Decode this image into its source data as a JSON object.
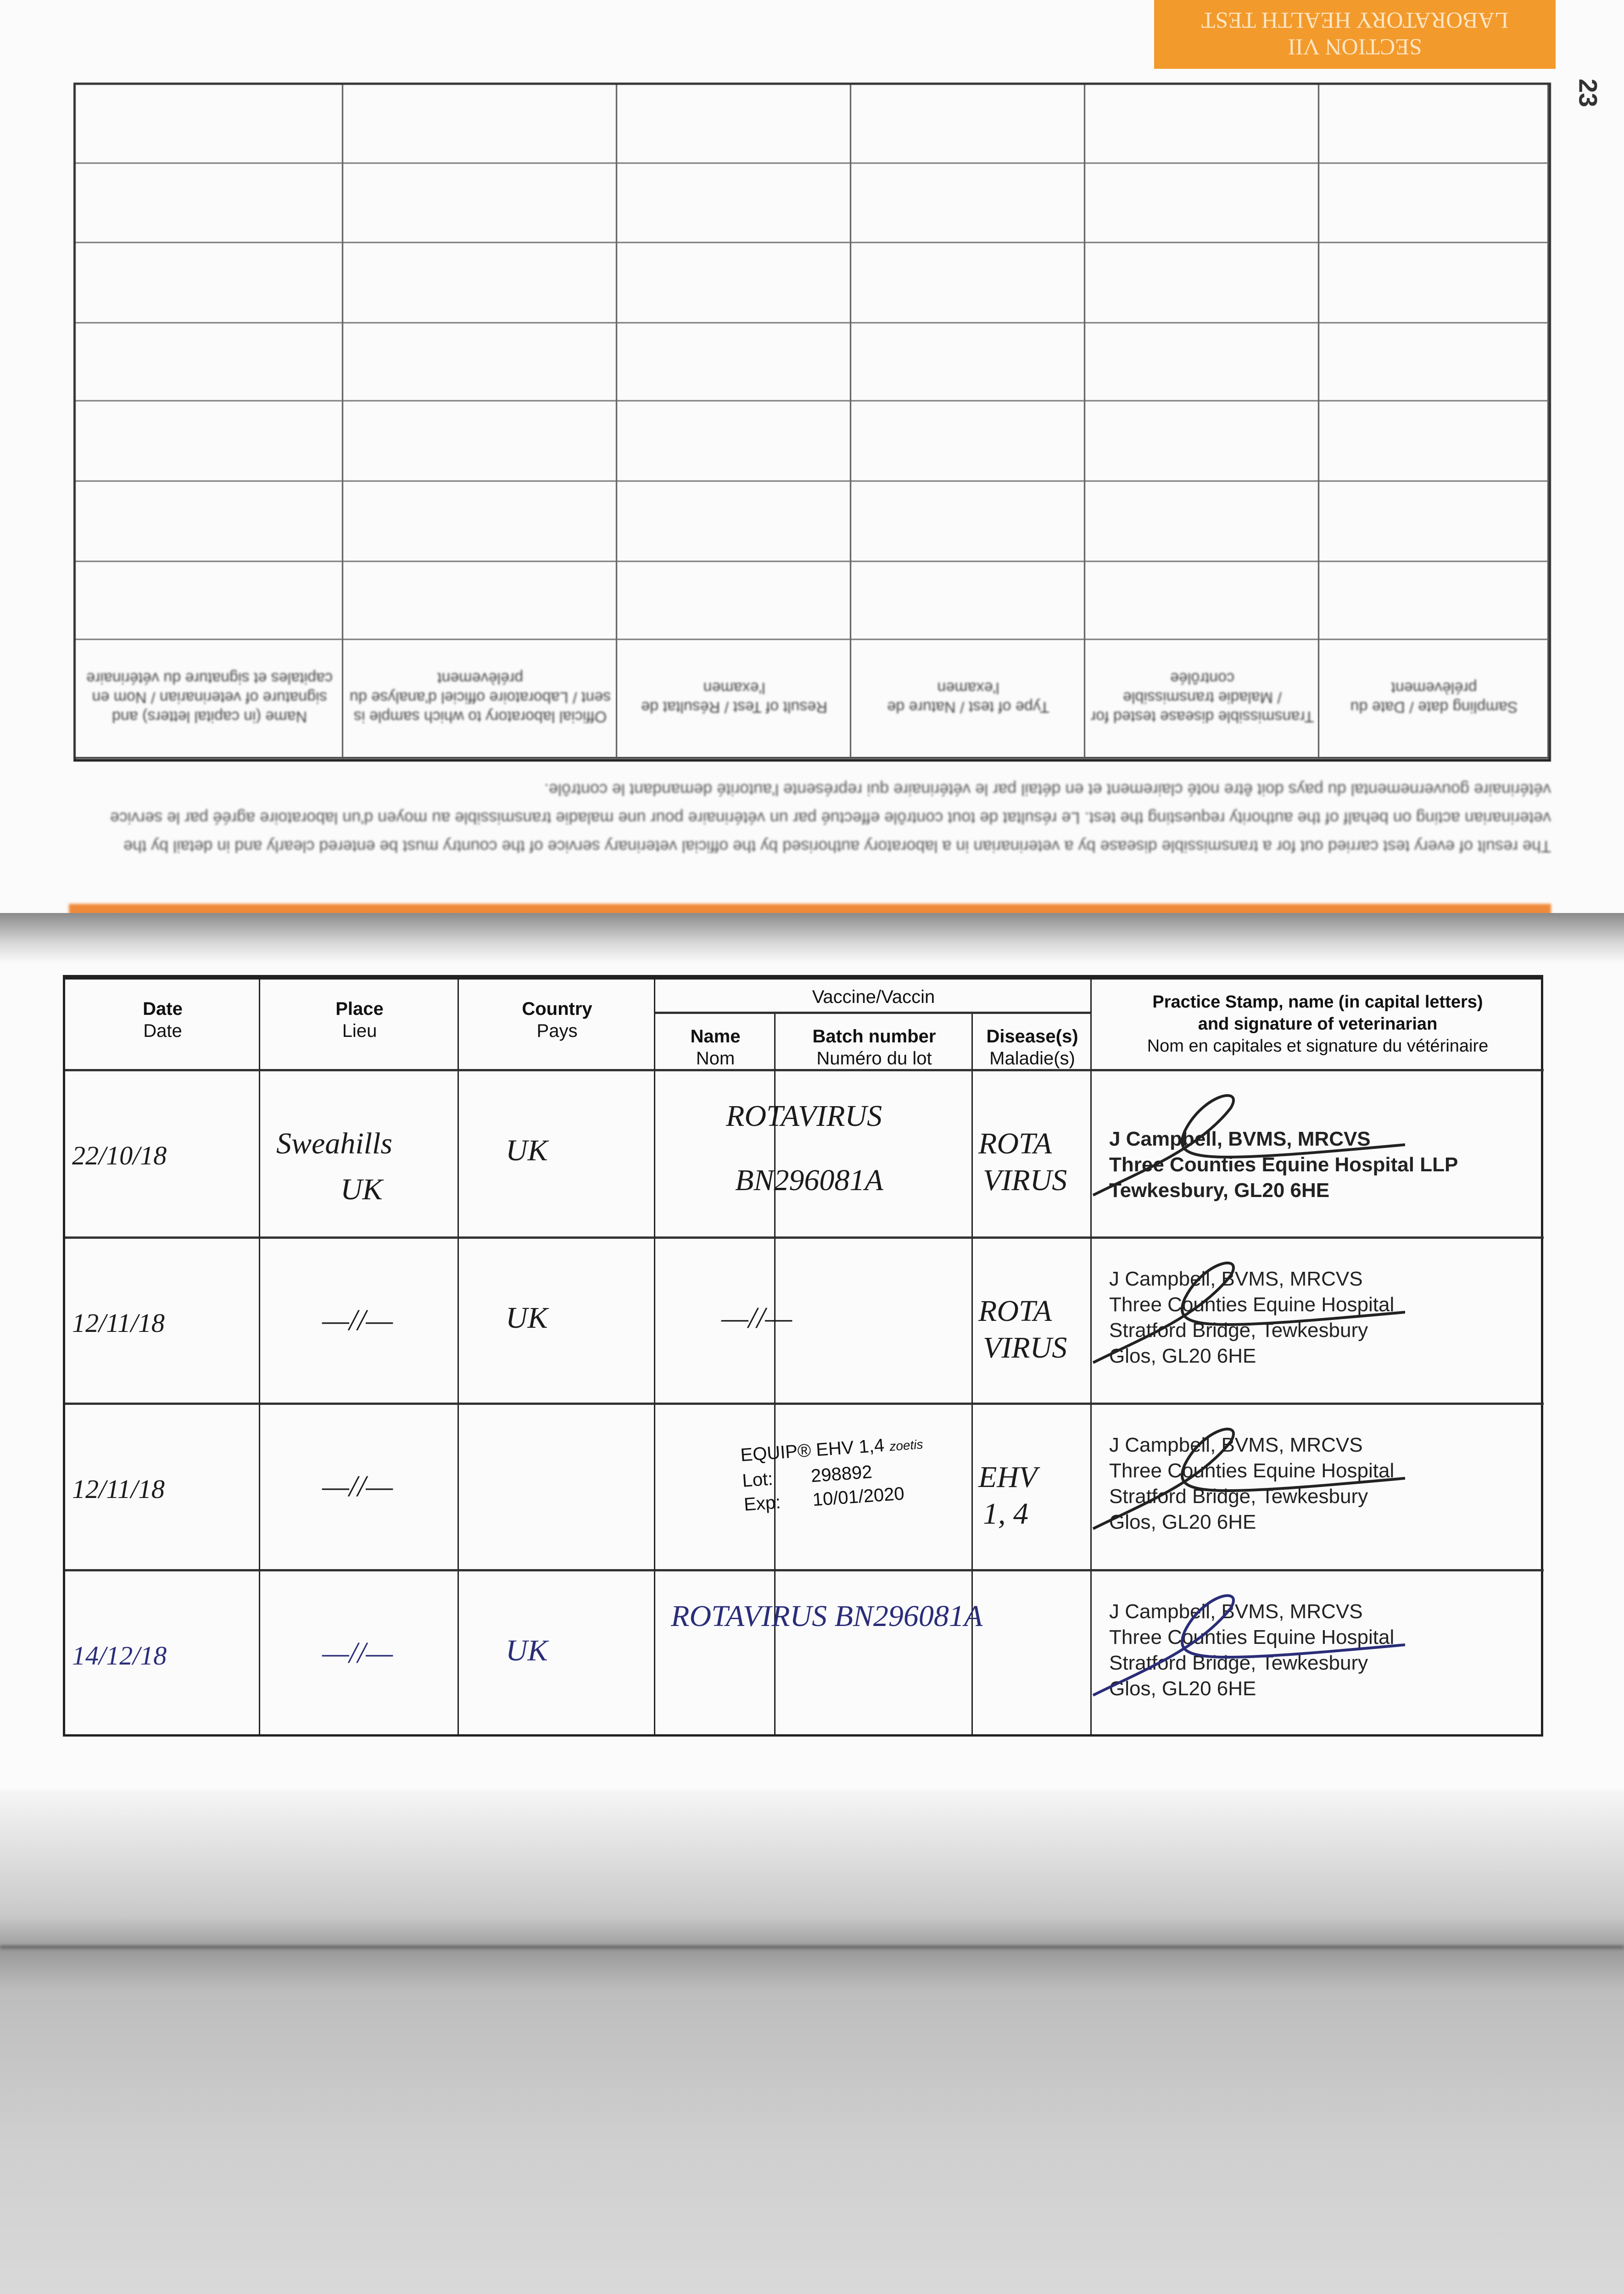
{
  "banner": {
    "line1": "LABORATORY HEALTH TEST",
    "line2": "SECTION VII",
    "color": "#f39a2c"
  },
  "page_number": "23",
  "lab_table": {
    "headers": [
      "Name (in capital letters) and signature of veterinarian / Nom en capitales et signature du vétérinaire",
      "Official laboratory to which sample is sent / Laboratoire officiel d'analyse du prélèvement",
      "Result of Test / Résultat de l'examen",
      "Type of test / Nature de l'examen",
      "Transmissible disease tested for / Maladie transmissible contrôlée",
      "Sampling date / Date du prélèvement"
    ],
    "empty_rows": 7
  },
  "lab_note": "The result of every test carried out for a transmissible disease by a veterinarian in a laboratory authorised by the official veterinary service of the country must be entered clearly and in detail by the veterinarian acting on behalf of the authority requesting the test. Le résultat de tout contrôle effectué par un vétérinaire pour une maladie transmissible au moyen d'un laboratoire agréé par le service vétérinaire gouvernemental du pays doit être noté clairement et en détail par le vétérinaire qui représente l'autorité demandant le contrôle.",
  "vacc_table": {
    "headers": {
      "date": {
        "en": "Date",
        "fr": "Date"
      },
      "place": {
        "en": "Place",
        "fr": "Lieu"
      },
      "country": {
        "en": "Country",
        "fr": "Pays"
      },
      "vaccine": "Vaccine/Vaccin",
      "name": {
        "en": "Name",
        "fr": "Nom"
      },
      "batch": {
        "en": "Batch number",
        "fr": "Numéro du lot"
      },
      "disease": {
        "en": "Disease(s)",
        "fr": "Maladie(s)"
      },
      "stamp": {
        "en1": "Practice Stamp, name (in capital letters)",
        "en2": "and signature of veterinarian",
        "fr": "Nom en capitales et signature du vétérinaire"
      }
    },
    "rows": [
      {
        "date": "22/10/18",
        "place1": "Sweahills",
        "place2": "UK",
        "country": "UK",
        "name": "ROTAVIRUS",
        "batch": "BN296081A",
        "disease1": "ROTA",
        "disease2": "VIRUS",
        "stamp": [
          "J Campbell, BVMS, MRCVS",
          "Three Counties Equine Hospital LLP",
          "Tewkesbury, GL20 6HE"
        ]
      },
      {
        "date": "12/11/18",
        "place1": "—//—",
        "country": "UK",
        "name": "—//—",
        "disease1": "ROTA",
        "disease2": "VIRUS",
        "stamp": [
          "J Campbell, BVMS, MRCVS",
          "Three Counties Equine Hospital",
          "Stratford Bridge, Tewkesbury",
          "Glos, GL20 6HE"
        ]
      },
      {
        "date": "12/11/18",
        "place1": "—//—",
        "label_product": "EQUIP® EHV 1,4",
        "label_brand": "zoetis",
        "label_lot_key": "Lot:",
        "label_lot": "298892",
        "label_exp_key": "Exp:",
        "label_exp": "10/01/2020",
        "disease1": "EHV",
        "disease2": "1, 4",
        "stamp": [
          "J Campbell, BVMS, MRCVS",
          "Three Counties Equine Hospital",
          "Stratford Bridge, Tewkesbury",
          "Glos, GL20 6HE"
        ]
      },
      {
        "date": "14/12/18",
        "place1": "—//—",
        "country": "UK",
        "name": "ROTAVIRUS BN296081A",
        "stamp": [
          "J Campbell, BVMS, MRCVS",
          "Three Counties Equine Hospital",
          "Stratford Bridge, Tewkesbury",
          "Glos, GL20 6HE"
        ]
      }
    ]
  }
}
